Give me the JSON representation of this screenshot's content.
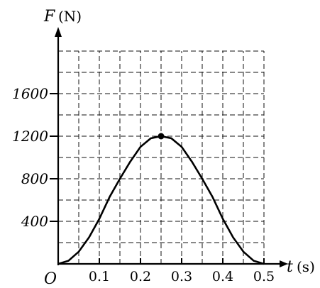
{
  "chart_data": {
    "type": "line",
    "title": "",
    "xlabel": {
      "symbol": "t",
      "unit": "(s)"
    },
    "ylabel": {
      "symbol": "F",
      "unit": "(N)"
    },
    "origin_label": "O",
    "xlim": [
      0,
      0.5
    ],
    "ylim": [
      0,
      2000
    ],
    "x_ticks": [
      {
        "value": 0.1,
        "label": "0.1"
      },
      {
        "value": 0.2,
        "label": "0.2"
      },
      {
        "value": 0.3,
        "label": "0.3"
      },
      {
        "value": 0.4,
        "label": "0.4"
      },
      {
        "value": 0.5,
        "label": "0.5"
      }
    ],
    "y_ticks": [
      {
        "value": 400,
        "label": "400"
      },
      {
        "value": 800,
        "label": "800"
      },
      {
        "value": 1200,
        "label": "1200"
      },
      {
        "value": 1600,
        "label": "1600"
      }
    ],
    "grid": true,
    "grid_step": {
      "x": 0.05,
      "y": 200
    },
    "series": [
      {
        "x": [
          0,
          0.025,
          0.05,
          0.075,
          0.1,
          0.125,
          0.15,
          0.175,
          0.2,
          0.225,
          0.25,
          0.275,
          0.3,
          0.325,
          0.35,
          0.375,
          0.4,
          0.425,
          0.45,
          0.475,
          0.5
        ],
        "y": [
          0,
          29,
          115,
          249,
          424,
          629,
          800,
          960,
          1100,
          1180,
          1200,
          1180,
          1100,
          960,
          800,
          629,
          424,
          249,
          115,
          29,
          0
        ]
      }
    ],
    "marked_point": {
      "x": 0.25,
      "y": 1200
    }
  }
}
